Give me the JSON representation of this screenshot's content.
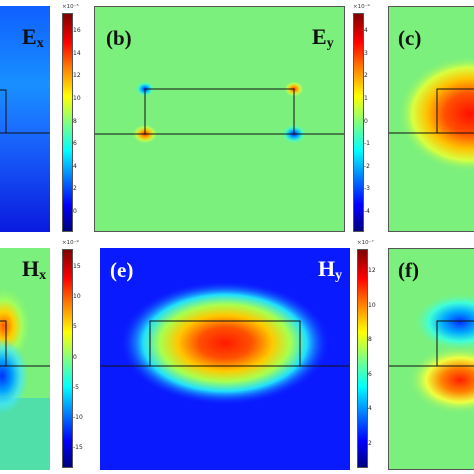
{
  "panels": {
    "ex": {
      "letter": "",
      "component": "E",
      "sub": "x"
    },
    "b": {
      "letter": "(b)",
      "component": "E",
      "sub": "y"
    },
    "c": {
      "letter": "(c)",
      "component": "",
      "sub": ""
    },
    "hx": {
      "letter": "",
      "component": "H",
      "sub": "x"
    },
    "e": {
      "letter": "(e)",
      "component": "H",
      "sub": "y"
    },
    "f": {
      "letter": "(f)",
      "component": "",
      "sub": ""
    }
  },
  "colorbars": {
    "cb1": {
      "exponent": "×10⁻⁵",
      "ticks": [
        "16",
        "14",
        "12",
        "10",
        "8",
        "6",
        "4",
        "2",
        "0"
      ]
    },
    "cb2": {
      "exponent": "×10⁻⁹",
      "ticks": [
        "4",
        "3",
        "2",
        "1",
        "0",
        "-1",
        "-2",
        "-3",
        "-4"
      ]
    },
    "cb3": {
      "exponent": "×10⁻⁹",
      "ticks": [
        "15",
        "10",
        "5",
        "0",
        "-5",
        "-10",
        "-15"
      ]
    },
    "cb4": {
      "exponent": "×10⁻⁷",
      "ticks": [
        "12",
        "10",
        "8",
        "6",
        "4",
        "2"
      ]
    }
  },
  "colors": {
    "deep_blue": "#0a1aff",
    "green": "#7cf07c",
    "red": "#e41414"
  }
}
